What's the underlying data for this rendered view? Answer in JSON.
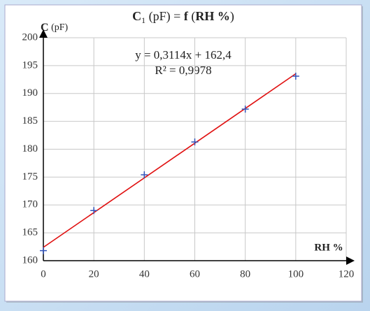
{
  "chart_data": {
    "type": "scatter",
    "title_parts": [
      "C",
      "1",
      " (pF) = ",
      "f",
      " (",
      "RH %",
      ")"
    ],
    "y_label_parts": [
      "C",
      " (pF)"
    ],
    "x_label": "RH %",
    "annotations": [
      "y = 0,3114x + 162,4",
      "R² = 0,9978"
    ],
    "x": [
      0,
      20,
      40,
      60,
      80,
      100
    ],
    "series": [
      {
        "color": "#3355bb",
        "values": [
          161.8,
          169.0,
          175.4,
          181.3,
          187.2,
          193.1
        ]
      }
    ],
    "trendline": {
      "color": "#e01010",
      "x": [
        0,
        100
      ],
      "values": [
        162.4,
        193.54
      ]
    },
    "xlim": [
      0,
      120
    ],
    "xticks": [
      0,
      20,
      40,
      60,
      80,
      100,
      120
    ],
    "ylim": [
      160,
      200
    ],
    "yticks": [
      160,
      165,
      170,
      175,
      180,
      185,
      190,
      195,
      200
    ],
    "grid": true
  }
}
